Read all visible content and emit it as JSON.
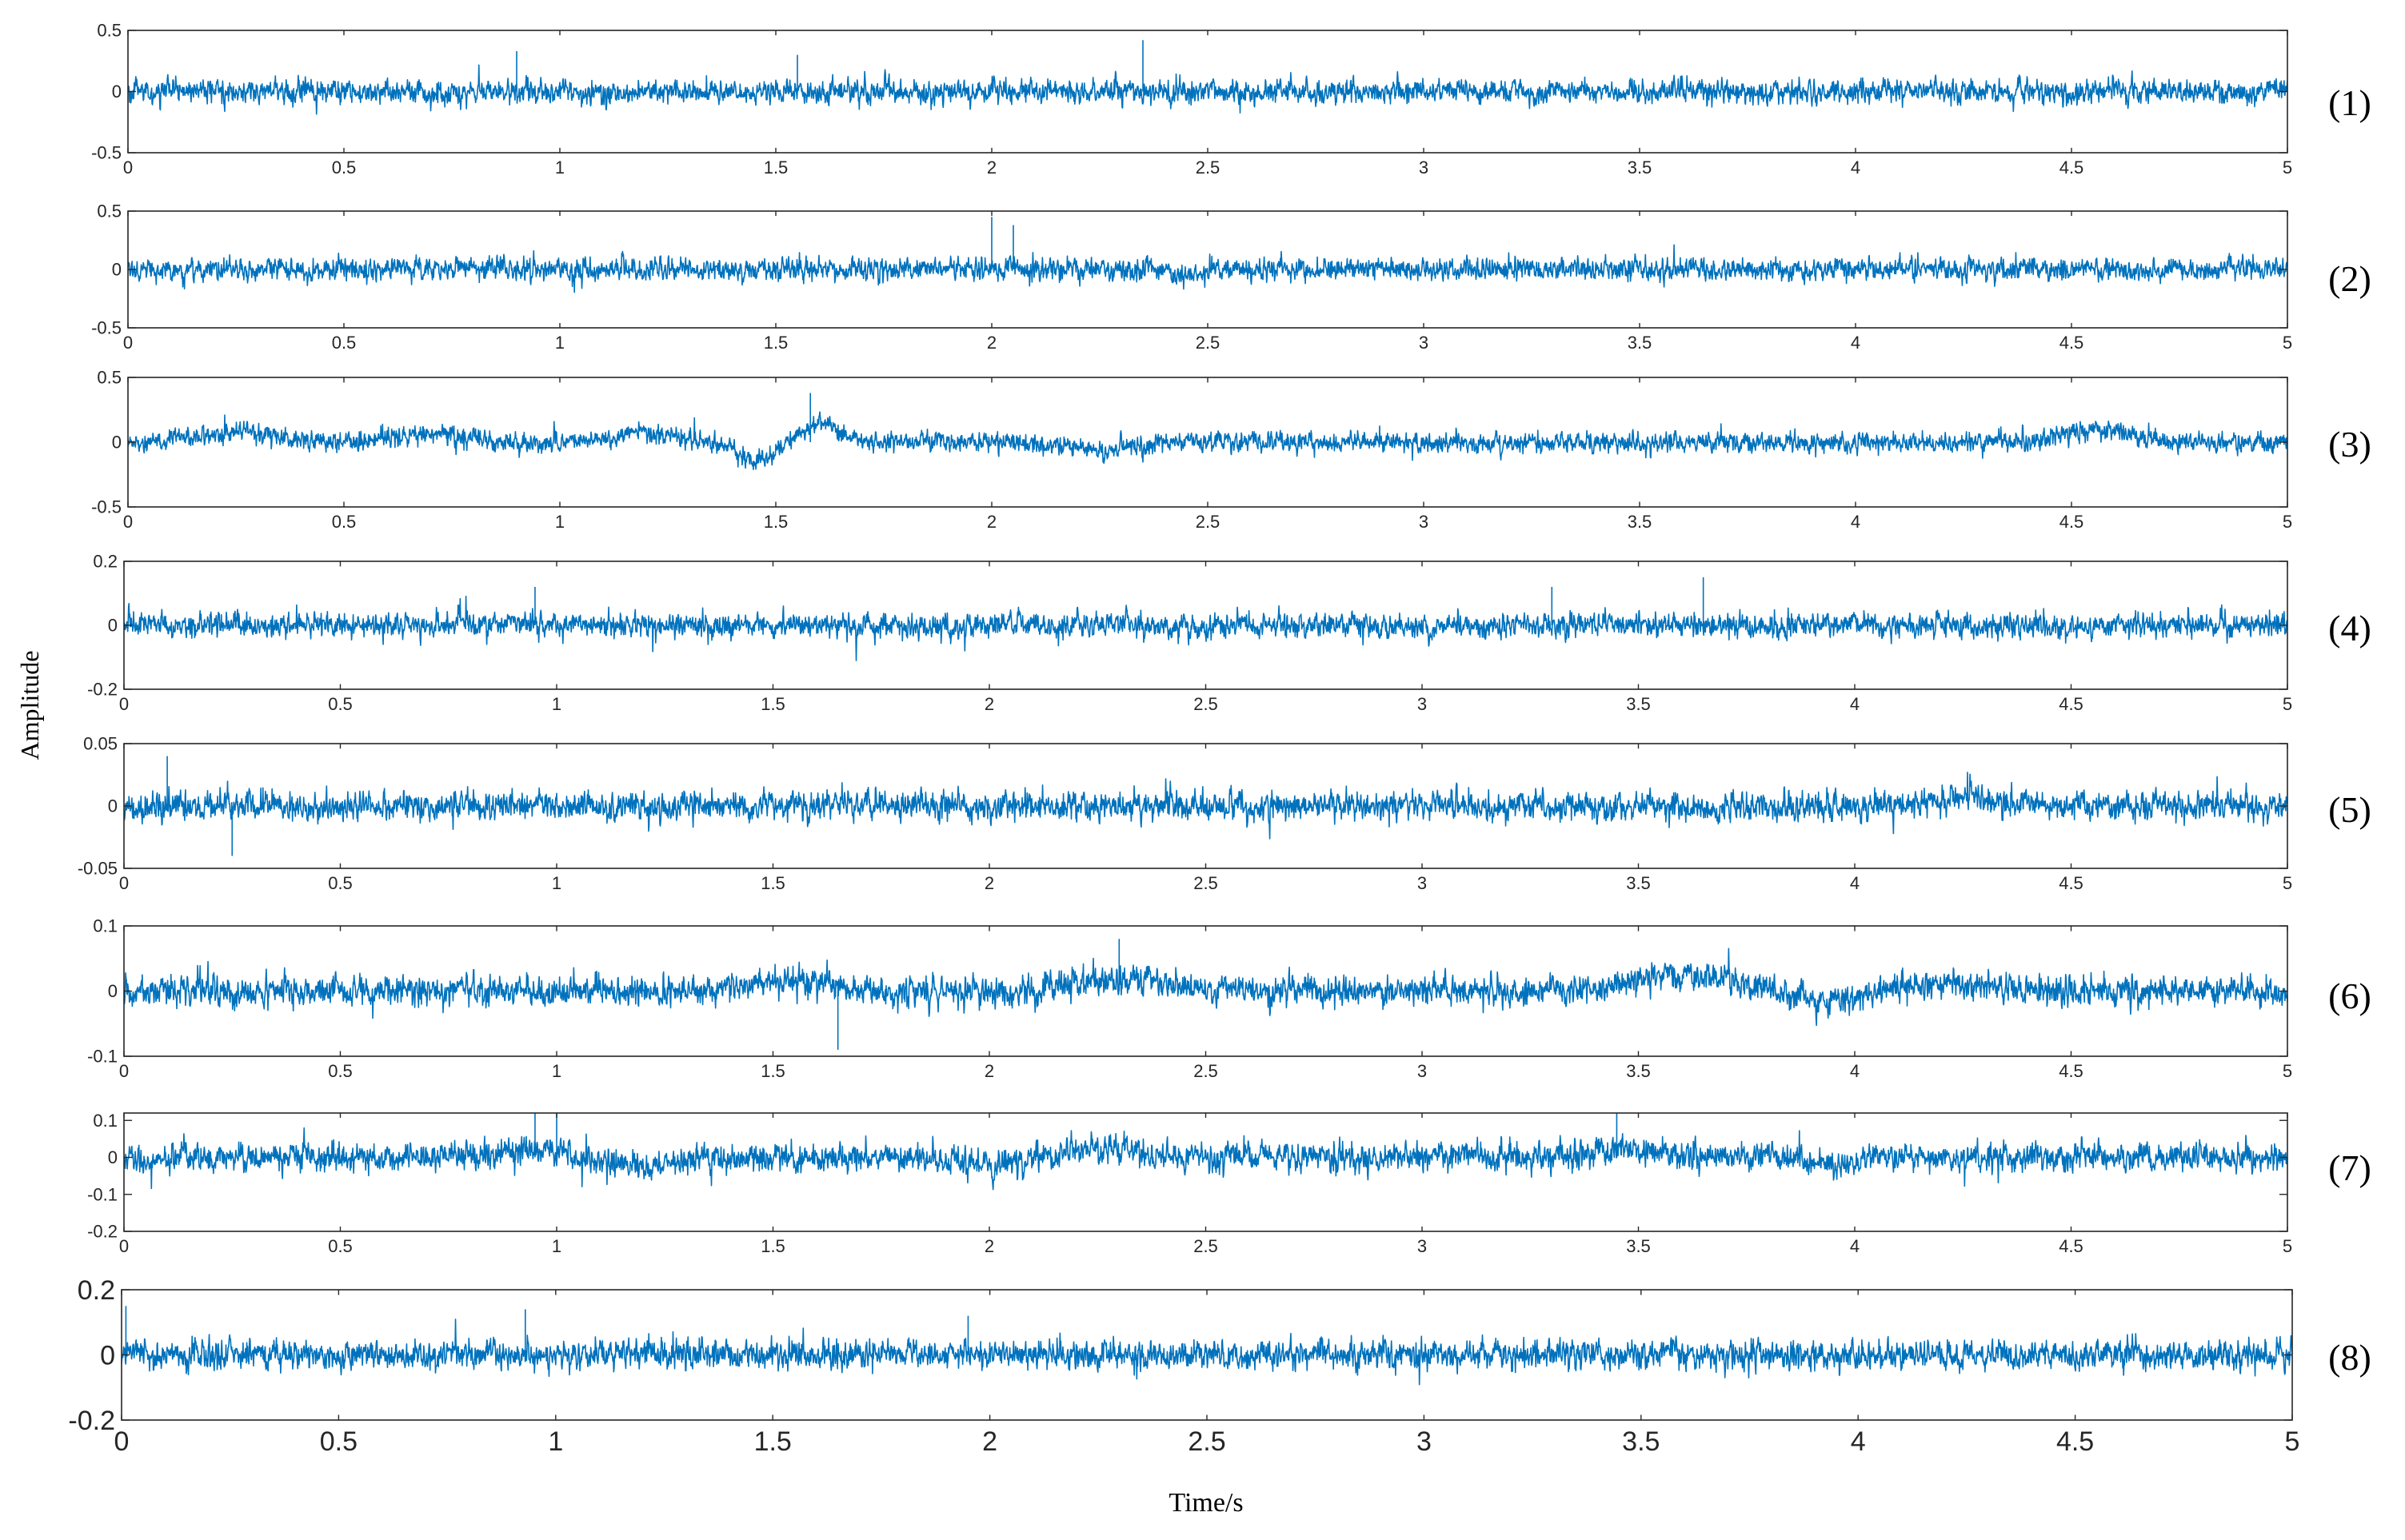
{
  "chart_data": {
    "type": "line",
    "xlabel": "Time/s",
    "ylabel": "Amplitude",
    "xlim": [
      0,
      5
    ],
    "xticks": [
      0,
      0.5,
      1,
      1.5,
      2,
      2.5,
      3,
      3.5,
      4,
      4.5,
      5
    ],
    "xtick_labels": [
      "0",
      "0.5",
      "1",
      "1.5",
      "2",
      "2.5",
      "3",
      "3.5",
      "4",
      "4.5",
      "5"
    ],
    "line_color": "#0072BD",
    "grid": false,
    "panels": [
      {
        "label": "(1)",
        "ylim": [
          -0.5,
          0.5
        ],
        "yticks": [
          0.5,
          0,
          -0.5
        ],
        "ytick_labels": [
          "0.5",
          "0",
          "-0.5"
        ],
        "signal": {
          "noise_std": 0.075,
          "peak": 0.42,
          "drift": [],
          "spikes": [
            [
              2.35,
              0.42
            ],
            [
              0.9,
              0.33
            ],
            [
              1.55,
              0.3
            ]
          ]
        }
      },
      {
        "label": "(2)",
        "ylim": [
          -0.5,
          0.5
        ],
        "yticks": [
          0.5,
          0,
          -0.5
        ],
        "ytick_labels": [
          "0.5",
          "0",
          "-0.5"
        ],
        "signal": {
          "noise_std": 0.075,
          "peak": 0.45,
          "drift": [
            [
              2.45,
              -0.05,
              0.05
            ]
          ],
          "spikes": [
            [
              2.0,
              0.45
            ],
            [
              2.05,
              0.38
            ]
          ]
        }
      },
      {
        "label": "(3)",
        "ylim": [
          -0.5,
          0.5
        ],
        "yticks": [
          0.5,
          0,
          -0.5
        ],
        "ytick_labels": [
          "0.5",
          "0",
          "-0.5"
        ],
        "signal": {
          "noise_std": 0.06,
          "peak": 0.38,
          "drift": [
            [
              0.25,
              0.08,
              0.12
            ],
            [
              0.7,
              0.06,
              0.1
            ],
            [
              1.2,
              0.07,
              0.1
            ],
            [
              1.45,
              -0.12,
              0.07
            ],
            [
              1.6,
              0.14,
              0.06
            ],
            [
              2.25,
              -0.06,
              0.1
            ],
            [
              4.55,
              0.09,
              0.1
            ]
          ],
          "spikes": [
            [
              1.58,
              0.38
            ]
          ]
        }
      },
      {
        "label": "(4)",
        "ylim": [
          -0.2,
          0.2
        ],
        "yticks": [
          0.2,
          0,
          -0.2
        ],
        "ytick_labels": [
          "0.2",
          "0",
          "-0.2"
        ],
        "signal": {
          "noise_std": 0.03,
          "peak": 0.15,
          "drift": [],
          "spikes": [
            [
              3.65,
              0.15
            ],
            [
              3.3,
              0.12
            ],
            [
              0.95,
              0.12
            ]
          ]
        }
      },
      {
        "label": "(5)",
        "ylim": [
          -0.05,
          0.05
        ],
        "yticks": [
          0.05,
          0,
          -0.05
        ],
        "ytick_labels": [
          "0.05",
          "0",
          "-0.05"
        ],
        "signal": {
          "noise_std": 0.009,
          "peak": 0.04,
          "drift": [
            [
              4.25,
              0.006,
              0.1
            ]
          ],
          "spikes": [
            [
              0.1,
              0.04
            ],
            [
              0.25,
              -0.04
            ]
          ]
        }
      },
      {
        "label": "(6)",
        "ylim": [
          -0.1,
          0.1
        ],
        "yticks": [
          0.1,
          0,
          -0.1
        ],
        "ytick_labels": [
          "0.1",
          "0",
          "-0.1"
        ],
        "signal": {
          "noise_std": 0.018,
          "peak": 0.08,
          "drift": [
            [
              1.55,
              0.015,
              0.12
            ],
            [
              2.3,
              0.018,
              0.15
            ],
            [
              3.6,
              0.025,
              0.15
            ],
            [
              3.95,
              -0.02,
              0.08
            ],
            [
              4.2,
              0.012,
              0.12
            ]
          ],
          "spikes": [
            [
              1.65,
              -0.09
            ],
            [
              2.3,
              0.08
            ]
          ]
        }
      },
      {
        "label": "(7)",
        "ylim": [
          -0.2,
          0.12
        ],
        "yticks": [
          0.1,
          0,
          -0.1,
          -0.2
        ],
        "ytick_labels": [
          "0.1",
          "0",
          "-0.1",
          "-0.2"
        ],
        "signal": {
          "noise_std": 0.03,
          "peak": 0.12,
          "drift": [
            [
              0.95,
              0.02,
              0.1
            ],
            [
              1.2,
              -0.025,
              0.08
            ],
            [
              2.0,
              -0.02,
              0.1
            ],
            [
              2.25,
              0.025,
              0.1
            ],
            [
              3.45,
              0.03,
              0.08
            ],
            [
              3.95,
              -0.02,
              0.06
            ]
          ],
          "spikes": [
            [
              0.95,
              0.12
            ],
            [
              1.0,
              0.12
            ],
            [
              3.45,
              0.12
            ]
          ]
        }
      },
      {
        "label": "(8)",
        "ylim": [
          -0.2,
          0.2
        ],
        "yticks": [
          0.2,
          0,
          -0.2
        ],
        "ytick_labels": [
          "0.2",
          "0",
          "-0.2"
        ],
        "signal": {
          "noise_std": 0.035,
          "peak": 0.15,
          "drift": [],
          "spikes": [
            [
              0.01,
              0.15
            ],
            [
              0.93,
              0.14
            ],
            [
              1.95,
              0.12
            ]
          ]
        }
      }
    ]
  }
}
